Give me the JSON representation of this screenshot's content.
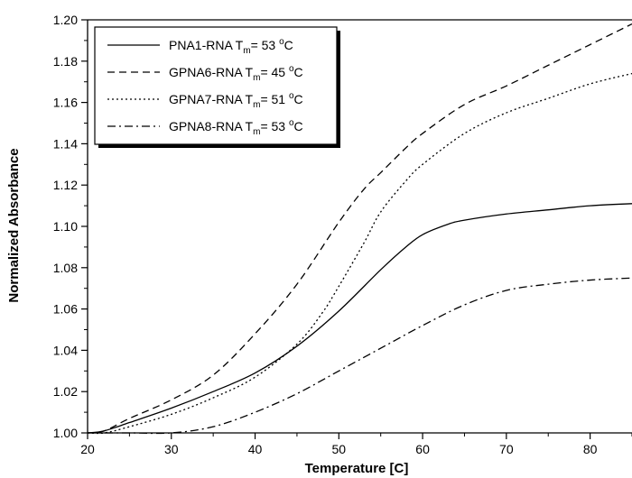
{
  "chart_data": {
    "type": "line",
    "title": "",
    "xlabel": "Temperature [C]",
    "ylabel": "Normalized Absorbance",
    "xlim": [
      20,
      85
    ],
    "ylim": [
      1.0,
      1.2
    ],
    "xticks": [
      20,
      30,
      40,
      50,
      60,
      70,
      80
    ],
    "xtick_labels": [
      "20",
      "30",
      "40",
      "50",
      "60",
      "70",
      "80"
    ],
    "yticks": [
      1.0,
      1.02,
      1.04,
      1.06,
      1.08,
      1.1,
      1.12,
      1.14,
      1.16,
      1.18,
      1.2
    ],
    "ytick_labels": [
      "1.00",
      "1.02",
      "1.04",
      "1.06",
      "1.08",
      "1.10",
      "1.12",
      "1.14",
      "1.16",
      "1.18",
      "1.20"
    ],
    "grid": false,
    "legend_position": "top-left",
    "series": [
      {
        "name": "PNA1-RNA",
        "tm_label": "T",
        "tm_sub": "m",
        "tm_value": "= 53 ",
        "tm_deg": "o",
        "tm_unit": "C",
        "dash": "solid",
        "x": [
          20,
          22,
          25,
          30,
          35,
          40,
          45,
          50,
          55,
          58,
          60,
          63,
          65,
          70,
          75,
          80,
          85
        ],
        "y": [
          1.0,
          1.001,
          1.005,
          1.012,
          1.02,
          1.029,
          1.042,
          1.059,
          1.079,
          1.09,
          1.096,
          1.101,
          1.103,
          1.106,
          1.108,
          1.11,
          1.111
        ]
      },
      {
        "name": "GPNA6-RNA",
        "tm_label": "T",
        "tm_sub": "m",
        "tm_value": "= 45 ",
        "tm_deg": "o",
        "tm_unit": "C",
        "dash": "dash",
        "x": [
          20,
          22,
          25,
          30,
          35,
          40,
          45,
          50,
          53,
          55,
          58,
          60,
          65,
          70,
          75,
          80,
          85
        ],
        "y": [
          1.0,
          1.001,
          1.007,
          1.016,
          1.028,
          1.048,
          1.072,
          1.102,
          1.118,
          1.126,
          1.138,
          1.145,
          1.159,
          1.168,
          1.178,
          1.188,
          1.198
        ]
      },
      {
        "name": "GPNA7-RNA",
        "tm_label": "T",
        "tm_sub": "m",
        "tm_value": "= 51 ",
        "tm_deg": "o",
        "tm_unit": "C",
        "dash": "dot",
        "x": [
          20,
          22,
          25,
          30,
          35,
          40,
          45,
          48,
          50,
          53,
          55,
          58,
          60,
          65,
          70,
          75,
          80,
          85
        ],
        "y": [
          1.0,
          1.0,
          1.003,
          1.009,
          1.017,
          1.027,
          1.043,
          1.058,
          1.071,
          1.092,
          1.107,
          1.122,
          1.13,
          1.145,
          1.155,
          1.162,
          1.169,
          1.174
        ]
      },
      {
        "name": "GPNA8-RNA",
        "tm_label": "T",
        "tm_sub": "m",
        "tm_value": "= 53 ",
        "tm_deg": "o",
        "tm_unit": "C",
        "dash": "dashdot",
        "x": [
          20,
          25,
          30,
          35,
          40,
          45,
          50,
          55,
          60,
          65,
          70,
          75,
          80,
          85
        ],
        "y": [
          1.0,
          1.0,
          1.0,
          1.003,
          1.01,
          1.019,
          1.03,
          1.041,
          1.052,
          1.062,
          1.069,
          1.072,
          1.074,
          1.075
        ]
      }
    ]
  }
}
